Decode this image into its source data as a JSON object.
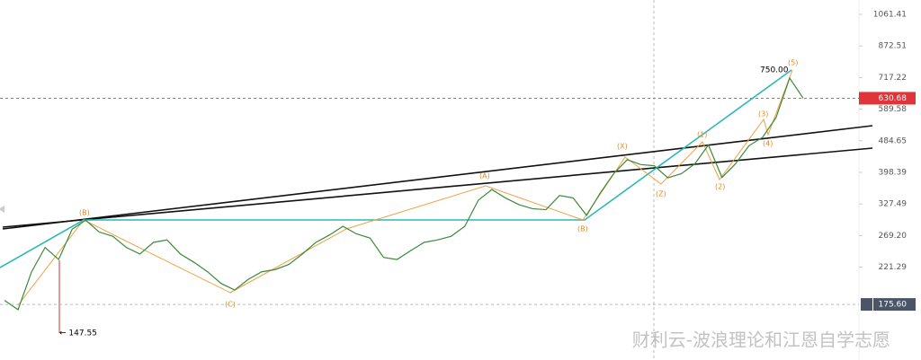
{
  "chart_data": {
    "type": "line",
    "categories": [
      null,
      null,
      null,
      null,
      null,
      null,
      null,
      null,
      null,
      null,
      null,
      null,
      null,
      null,
      null,
      null,
      null,
      null,
      null,
      null,
      null,
      null,
      null,
      null,
      null,
      null,
      null,
      null,
      null,
      null,
      null,
      null,
      null,
      null,
      null,
      null,
      null,
      null,
      null,
      null,
      null,
      null,
      null,
      null,
      null,
      null,
      null,
      null,
      null,
      null,
      null,
      null,
      null,
      null,
      null,
      null,
      null,
      null,
      null,
      null
    ],
    "values": [
      180,
      170,
      215,
      250,
      232,
      280,
      296,
      275,
      268,
      250,
      240,
      258,
      262,
      240,
      228,
      215,
      200,
      192,
      205,
      215,
      218,
      225,
      240,
      258,
      270,
      285,
      272,
      265,
      235,
      232,
      245,
      258,
      262,
      268,
      285,
      335,
      358,
      340,
      326,
      318,
      316,
      345,
      340,
      305,
      350,
      395,
      431,
      418,
      415,
      385,
      395,
      420,
      472,
      386,
      420,
      470,
      495,
      560,
      715,
      630.68
    ],
    "color": "#3a8a3a",
    "log_scale": true,
    "ylim": [
      124.4,
      1160
    ],
    "yticks": [
      1061.41,
      872.51,
      717.22,
      589.58,
      484.65,
      398.39,
      327.49,
      {
        "value": 269.2,
        "label": "269.20"
      },
      221.29
    ],
    "current_price": 630.68,
    "crosshair_price": {
      "value": 175.6,
      "label": "175.60"
    },
    "annotations": [
      "← 147.55",
      "750.00"
    ]
  },
  "wave_labels": [
    "(B)",
    "(C)",
    "(A)",
    "(B)",
    "(X)",
    "(Z)",
    "(1)",
    "(2)",
    "(3)",
    "(4)",
    "(5)"
  ],
  "watermark": "财利云-波浪理论和江恩自学志愿"
}
